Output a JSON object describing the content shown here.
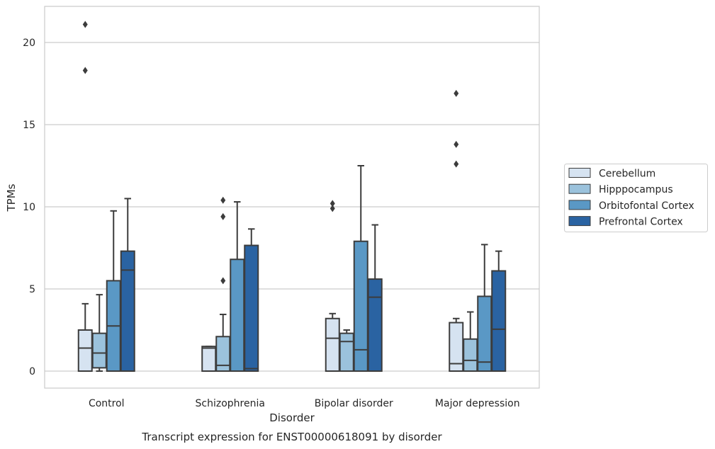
{
  "chart_data": {
    "type": "boxplot",
    "title": "Transcript expression for ENST00000618091 by disorder",
    "xlabel": "Disorder",
    "ylabel": "TPMs",
    "ylim": [
      -1,
      22
    ],
    "yticks": [
      0,
      5,
      10,
      15,
      20
    ],
    "grid": "horizontal",
    "legend_position": "right",
    "categories": [
      "Control",
      "Schizophrenia",
      "Bipolar disorder",
      "Major depression"
    ],
    "series": [
      {
        "name": "Cerebellum",
        "color": "#d6e3f1",
        "boxes": [
          {
            "whisker_low": 0,
            "q1": 0,
            "median": 1.4,
            "q3": 2.5,
            "whisker_high": 4.1,
            "outliers": [
              21.1,
              18.3
            ]
          },
          {
            "whisker_low": 0,
            "q1": 0,
            "median": 1.4,
            "q3": 1.5,
            "whisker_high": 1.5,
            "outliers": []
          },
          {
            "whisker_low": 0,
            "q1": 0,
            "median": 2.0,
            "q3": 3.2,
            "whisker_high": 3.5,
            "outliers": [
              10.2,
              9.9
            ]
          },
          {
            "whisker_low": 0,
            "q1": 0,
            "median": 0.45,
            "q3": 2.95,
            "whisker_high": 3.2,
            "outliers": [
              16.9,
              13.8,
              12.6
            ]
          }
        ]
      },
      {
        "name": "Hipppocampus",
        "color": "#9bc2dc",
        "boxes": [
          {
            "whisker_low": 0,
            "q1": 0.2,
            "median": 1.1,
            "q3": 2.3,
            "whisker_high": 4.65,
            "outliers": []
          },
          {
            "whisker_low": 0,
            "q1": 0,
            "median": 0.35,
            "q3": 2.1,
            "whisker_high": 3.45,
            "outliers": [
              10.4,
              9.4,
              5.5
            ]
          },
          {
            "whisker_low": 0,
            "q1": 0,
            "median": 1.8,
            "q3": 2.3,
            "whisker_high": 2.5,
            "outliers": []
          },
          {
            "whisker_low": 0,
            "q1": 0,
            "median": 0.65,
            "q3": 1.95,
            "whisker_high": 3.6,
            "outliers": []
          }
        ]
      },
      {
        "name": "Orbitofontal Cortex",
        "color": "#5a98c5",
        "boxes": [
          {
            "whisker_low": 0,
            "q1": 0,
            "median": 2.75,
            "q3": 5.5,
            "whisker_high": 9.75,
            "outliers": []
          },
          {
            "whisker_low": 0,
            "q1": 0,
            "median": 0,
            "q3": 6.8,
            "whisker_high": 10.3,
            "outliers": []
          },
          {
            "whisker_low": 0,
            "q1": 0,
            "median": 1.3,
            "q3": 7.9,
            "whisker_high": 12.5,
            "outliers": []
          },
          {
            "whisker_low": 0,
            "q1": 0,
            "median": 0.55,
            "q3": 4.55,
            "whisker_high": 7.7,
            "outliers": []
          }
        ]
      },
      {
        "name": "Prefrontal Cortex",
        "color": "#2a63a2",
        "boxes": [
          {
            "whisker_low": 0,
            "q1": 0,
            "median": 6.15,
            "q3": 7.3,
            "whisker_high": 10.5,
            "outliers": []
          },
          {
            "whisker_low": 0,
            "q1": 0,
            "median": 0.15,
            "q3": 7.65,
            "whisker_high": 8.65,
            "outliers": []
          },
          {
            "whisker_low": 0,
            "q1": 0,
            "median": 4.5,
            "q3": 5.6,
            "whisker_high": 8.9,
            "outliers": []
          },
          {
            "whisker_low": 0,
            "q1": 0,
            "median": 2.55,
            "q3": 6.1,
            "whisker_high": 7.3,
            "outliers": []
          }
        ]
      }
    ]
  }
}
